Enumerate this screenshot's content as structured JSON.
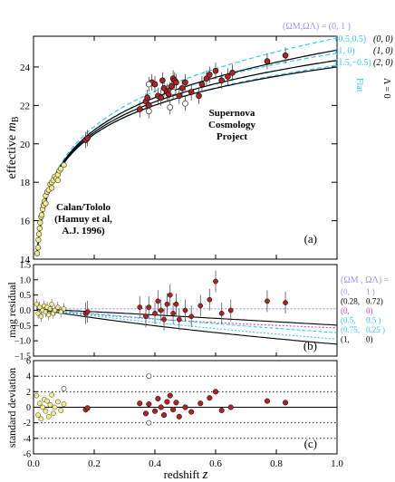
{
  "chart_data": [
    {
      "type": "scatter",
      "panel_label": "(a)",
      "ylabel_text": "effective ",
      "ylabel_sym": "m",
      "ylabel_sub": "B",
      "xlim": [
        0,
        1.0
      ],
      "ylim": [
        14,
        25.6
      ],
      "yticks": [
        14,
        16,
        18,
        20,
        22,
        24
      ],
      "annotations": {
        "scp": [
          "Supernova",
          "Cosmology",
          "Project"
        ],
        "calan": [
          "Calan/Tololo",
          "(Hamuy et al,",
          "A.J. 1996)"
        ]
      },
      "legend": {
        "header": "(ΩM,ΩΛ) = (0,   1 )",
        "rows": [
          {
            "left": "(0.5,0.5)",
            "right": "(0, 0)"
          },
          {
            "left": "(1,   0)",
            "right": "(1, 0)"
          },
          {
            "left": "(1.5,−0.5)",
            "right": "(2, 0)"
          }
        ],
        "flat_label": "Flat",
        "lambda_label": "Λ = 0"
      },
      "series": [
        {
          "name": "",
          "style": "cyan-dashed",
          "color": "#33ccee",
          "M": 0,
          "L": 1
        },
        {
          "name": "",
          "style": "cyan-dashed",
          "color": "#33ccee",
          "M": 0.5,
          "L": 0.5
        },
        {
          "name": "",
          "style": "cyan-dashed",
          "color": "#33ccee",
          "M": 1,
          "L": 0
        },
        {
          "name": "",
          "style": "cyan-dashed",
          "color": "#33ccee",
          "M": 1.5,
          "L": -0.5
        },
        {
          "name": "",
          "style": "black-solid",
          "color": "#000000",
          "M": 0,
          "L": 0
        },
        {
          "name": "",
          "style": "black-solid",
          "color": "#000000",
          "M": 1,
          "L": 0
        },
        {
          "name": "",
          "style": "black-solid",
          "color": "#000000",
          "M": 2,
          "L": 0
        }
      ],
      "calan_points": [
        [
          0.012,
          14.3
        ],
        [
          0.015,
          14.6
        ],
        [
          0.016,
          15.0
        ],
        [
          0.018,
          15.3
        ],
        [
          0.02,
          15.6
        ],
        [
          0.022,
          15.9
        ],
        [
          0.025,
          16.2
        ],
        [
          0.027,
          16.3
        ],
        [
          0.03,
          16.6
        ],
        [
          0.033,
          16.8
        ],
        [
          0.036,
          17.0
        ],
        [
          0.04,
          17.3
        ],
        [
          0.045,
          17.5
        ],
        [
          0.05,
          17.6
        ],
        [
          0.055,
          17.9
        ],
        [
          0.06,
          18.0
        ],
        [
          0.065,
          18.1
        ],
        [
          0.07,
          18.3
        ],
        [
          0.075,
          18.2
        ],
        [
          0.08,
          18.4
        ],
        [
          0.085,
          18.6
        ],
        [
          0.09,
          18.7
        ],
        [
          0.1,
          18.9
        ],
        [
          0.06,
          17.7
        ],
        [
          0.04,
          16.9
        ],
        [
          0.08,
          18.1
        ]
      ],
      "scp_points": [
        [
          0.172,
          20.2
        ],
        [
          0.178,
          20.3
        ],
        [
          0.35,
          21.8
        ],
        [
          0.37,
          22.2
        ],
        [
          0.375,
          22.4
        ],
        [
          0.38,
          22.0
        ],
        [
          0.39,
          23.2
        ],
        [
          0.4,
          23.1
        ],
        [
          0.41,
          22.5
        ],
        [
          0.42,
          22.4
        ],
        [
          0.425,
          23.3
        ],
        [
          0.43,
          22.9
        ],
        [
          0.44,
          22.7
        ],
        [
          0.445,
          22.6
        ],
        [
          0.45,
          22.8
        ],
        [
          0.455,
          23.0
        ],
        [
          0.46,
          23.4
        ],
        [
          0.465,
          23.3
        ],
        [
          0.47,
          23.2
        ],
        [
          0.48,
          22.5
        ],
        [
          0.49,
          22.9
        ],
        [
          0.5,
          23.2
        ],
        [
          0.52,
          22.7
        ],
        [
          0.545,
          22.5
        ],
        [
          0.555,
          23.1
        ],
        [
          0.57,
          23.4
        ],
        [
          0.58,
          23.6
        ],
        [
          0.6,
          23.8
        ],
        [
          0.62,
          23.3
        ],
        [
          0.64,
          23.5
        ],
        [
          0.655,
          23.7
        ],
        [
          0.77,
          24.3
        ],
        [
          0.83,
          24.6
        ]
      ],
      "scp_open_points": [
        [
          0.38,
          23.1
        ],
        [
          0.38,
          21.7
        ],
        [
          0.45,
          21.9
        ],
        [
          0.5,
          22.1
        ],
        [
          0.46,
          22.7
        ]
      ]
    },
    {
      "type": "scatter",
      "panel_label": "(b)",
      "ylabel": "mag residual",
      "xlim": [
        0,
        1.0
      ],
      "ylim": [
        -1.5,
        1.5
      ],
      "yticks": [
        -1.5,
        -1.0,
        -0.5,
        0.0,
        0.5,
        1.0,
        1.5
      ],
      "ytick_labels": [
        "−1.5",
        "−1.0",
        "−0.5",
        "0.0",
        "0.5",
        "1.0",
        "1.5"
      ],
      "legend": {
        "header": "(ΩM , ΩΛ) =",
        "rows": [
          {
            "left": "(0,",
            "right": "1 )",
            "color": "#9999ee"
          },
          {
            "left": "(0.28,",
            "right": "0.72)",
            "color": "#000000"
          },
          {
            "left": "(0,",
            "right": "0)",
            "color": "#cc44cc"
          },
          {
            "left": "(0.5,",
            "right": "0.5 )",
            "color": "#33ccee"
          },
          {
            "left": "(0.75,",
            "right": "0.25 )",
            "color": "#33ccee"
          },
          {
            "left": "(1,",
            "right": "0)",
            "color": "#000000"
          }
        ]
      },
      "calan_points": [
        [
          0.01,
          0.2
        ],
        [
          0.015,
          -0.1
        ],
        [
          0.02,
          0.1
        ],
        [
          0.025,
          -0.2
        ],
        [
          0.03,
          0.0
        ],
        [
          0.035,
          0.15
        ],
        [
          0.04,
          -0.05
        ],
        [
          0.045,
          0.1
        ],
        [
          0.05,
          -0.15
        ],
        [
          0.055,
          0.05
        ],
        [
          0.06,
          0.2
        ],
        [
          0.065,
          -0.1
        ],
        [
          0.07,
          0.0
        ],
        [
          0.08,
          0.1
        ],
        [
          0.09,
          -0.05
        ],
        [
          0.1,
          0.05
        ]
      ],
      "scp_points": [
        [
          0.172,
          -0.1
        ],
        [
          0.178,
          -0.05
        ],
        [
          0.35,
          0.1
        ],
        [
          0.37,
          -0.2
        ],
        [
          0.38,
          0.1
        ],
        [
          0.4,
          -0.1
        ],
        [
          0.41,
          0.3
        ],
        [
          0.42,
          0.0
        ],
        [
          0.43,
          -0.3
        ],
        [
          0.44,
          0.2
        ],
        [
          0.45,
          0.5
        ],
        [
          0.46,
          -0.1
        ],
        [
          0.47,
          0.2
        ],
        [
          0.48,
          -0.3
        ],
        [
          0.5,
          0.0
        ],
        [
          0.52,
          -0.2
        ],
        [
          0.55,
          0.15
        ],
        [
          0.58,
          0.35
        ],
        [
          0.6,
          0.95
        ],
        [
          0.62,
          -0.1
        ],
        [
          0.65,
          0.0
        ],
        [
          0.77,
          0.3
        ],
        [
          0.83,
          0.25
        ]
      ]
    },
    {
      "type": "scatter",
      "panel_label": "(c)",
      "ylabel": "standard deviation",
      "xlabel_text": "redshift ",
      "xlabel_sym": "z",
      "xlim": [
        0,
        1.0
      ],
      "ylim": [
        -6,
        6
      ],
      "yticks": [
        -6,
        -4,
        -2,
        0,
        2,
        4,
        6
      ],
      "xticks": [
        0.0,
        0.2,
        0.4,
        0.6,
        0.8,
        1.0
      ],
      "xtick_labels": [
        "0.0",
        "0.2",
        "0.4",
        "0.6",
        "0.8",
        "1.0"
      ],
      "dotted_levels": [
        -4,
        -2,
        2,
        4
      ],
      "calan_points": [
        [
          0.01,
          1.5
        ],
        [
          0.015,
          -1.0
        ],
        [
          0.02,
          0.5
        ],
        [
          0.025,
          -1.5
        ],
        [
          0.03,
          0.0
        ],
        [
          0.035,
          1.0
        ],
        [
          0.04,
          -0.5
        ],
        [
          0.045,
          0.8
        ],
        [
          0.05,
          -1.2
        ],
        [
          0.055,
          0.3
        ],
        [
          0.06,
          1.6
        ],
        [
          0.065,
          -0.8
        ],
        [
          0.07,
          0.0
        ],
        [
          0.08,
          0.7
        ],
        [
          0.09,
          -0.4
        ],
        [
          0.1,
          0.4
        ]
      ],
      "scp_points": [
        [
          0.172,
          -0.3
        ],
        [
          0.178,
          -0.1
        ],
        [
          0.35,
          0.5
        ],
        [
          0.37,
          -0.8
        ],
        [
          0.38,
          0.4
        ],
        [
          0.4,
          -0.5
        ],
        [
          0.41,
          1.1
        ],
        [
          0.42,
          0.0
        ],
        [
          0.43,
          -1.0
        ],
        [
          0.44,
          0.7
        ],
        [
          0.45,
          1.5
        ],
        [
          0.46,
          -0.3
        ],
        [
          0.47,
          0.6
        ],
        [
          0.48,
          -1.2
        ],
        [
          0.5,
          0.0
        ],
        [
          0.52,
          -0.6
        ],
        [
          0.55,
          0.5
        ],
        [
          0.58,
          1.2
        ],
        [
          0.6,
          2.0
        ],
        [
          0.62,
          -0.4
        ],
        [
          0.65,
          0.0
        ],
        [
          0.77,
          0.8
        ],
        [
          0.83,
          0.6
        ]
      ],
      "open_points": [
        [
          0.38,
          4.0
        ],
        [
          0.38,
          -2.0
        ],
        [
          0.1,
          2.4
        ]
      ]
    }
  ]
}
